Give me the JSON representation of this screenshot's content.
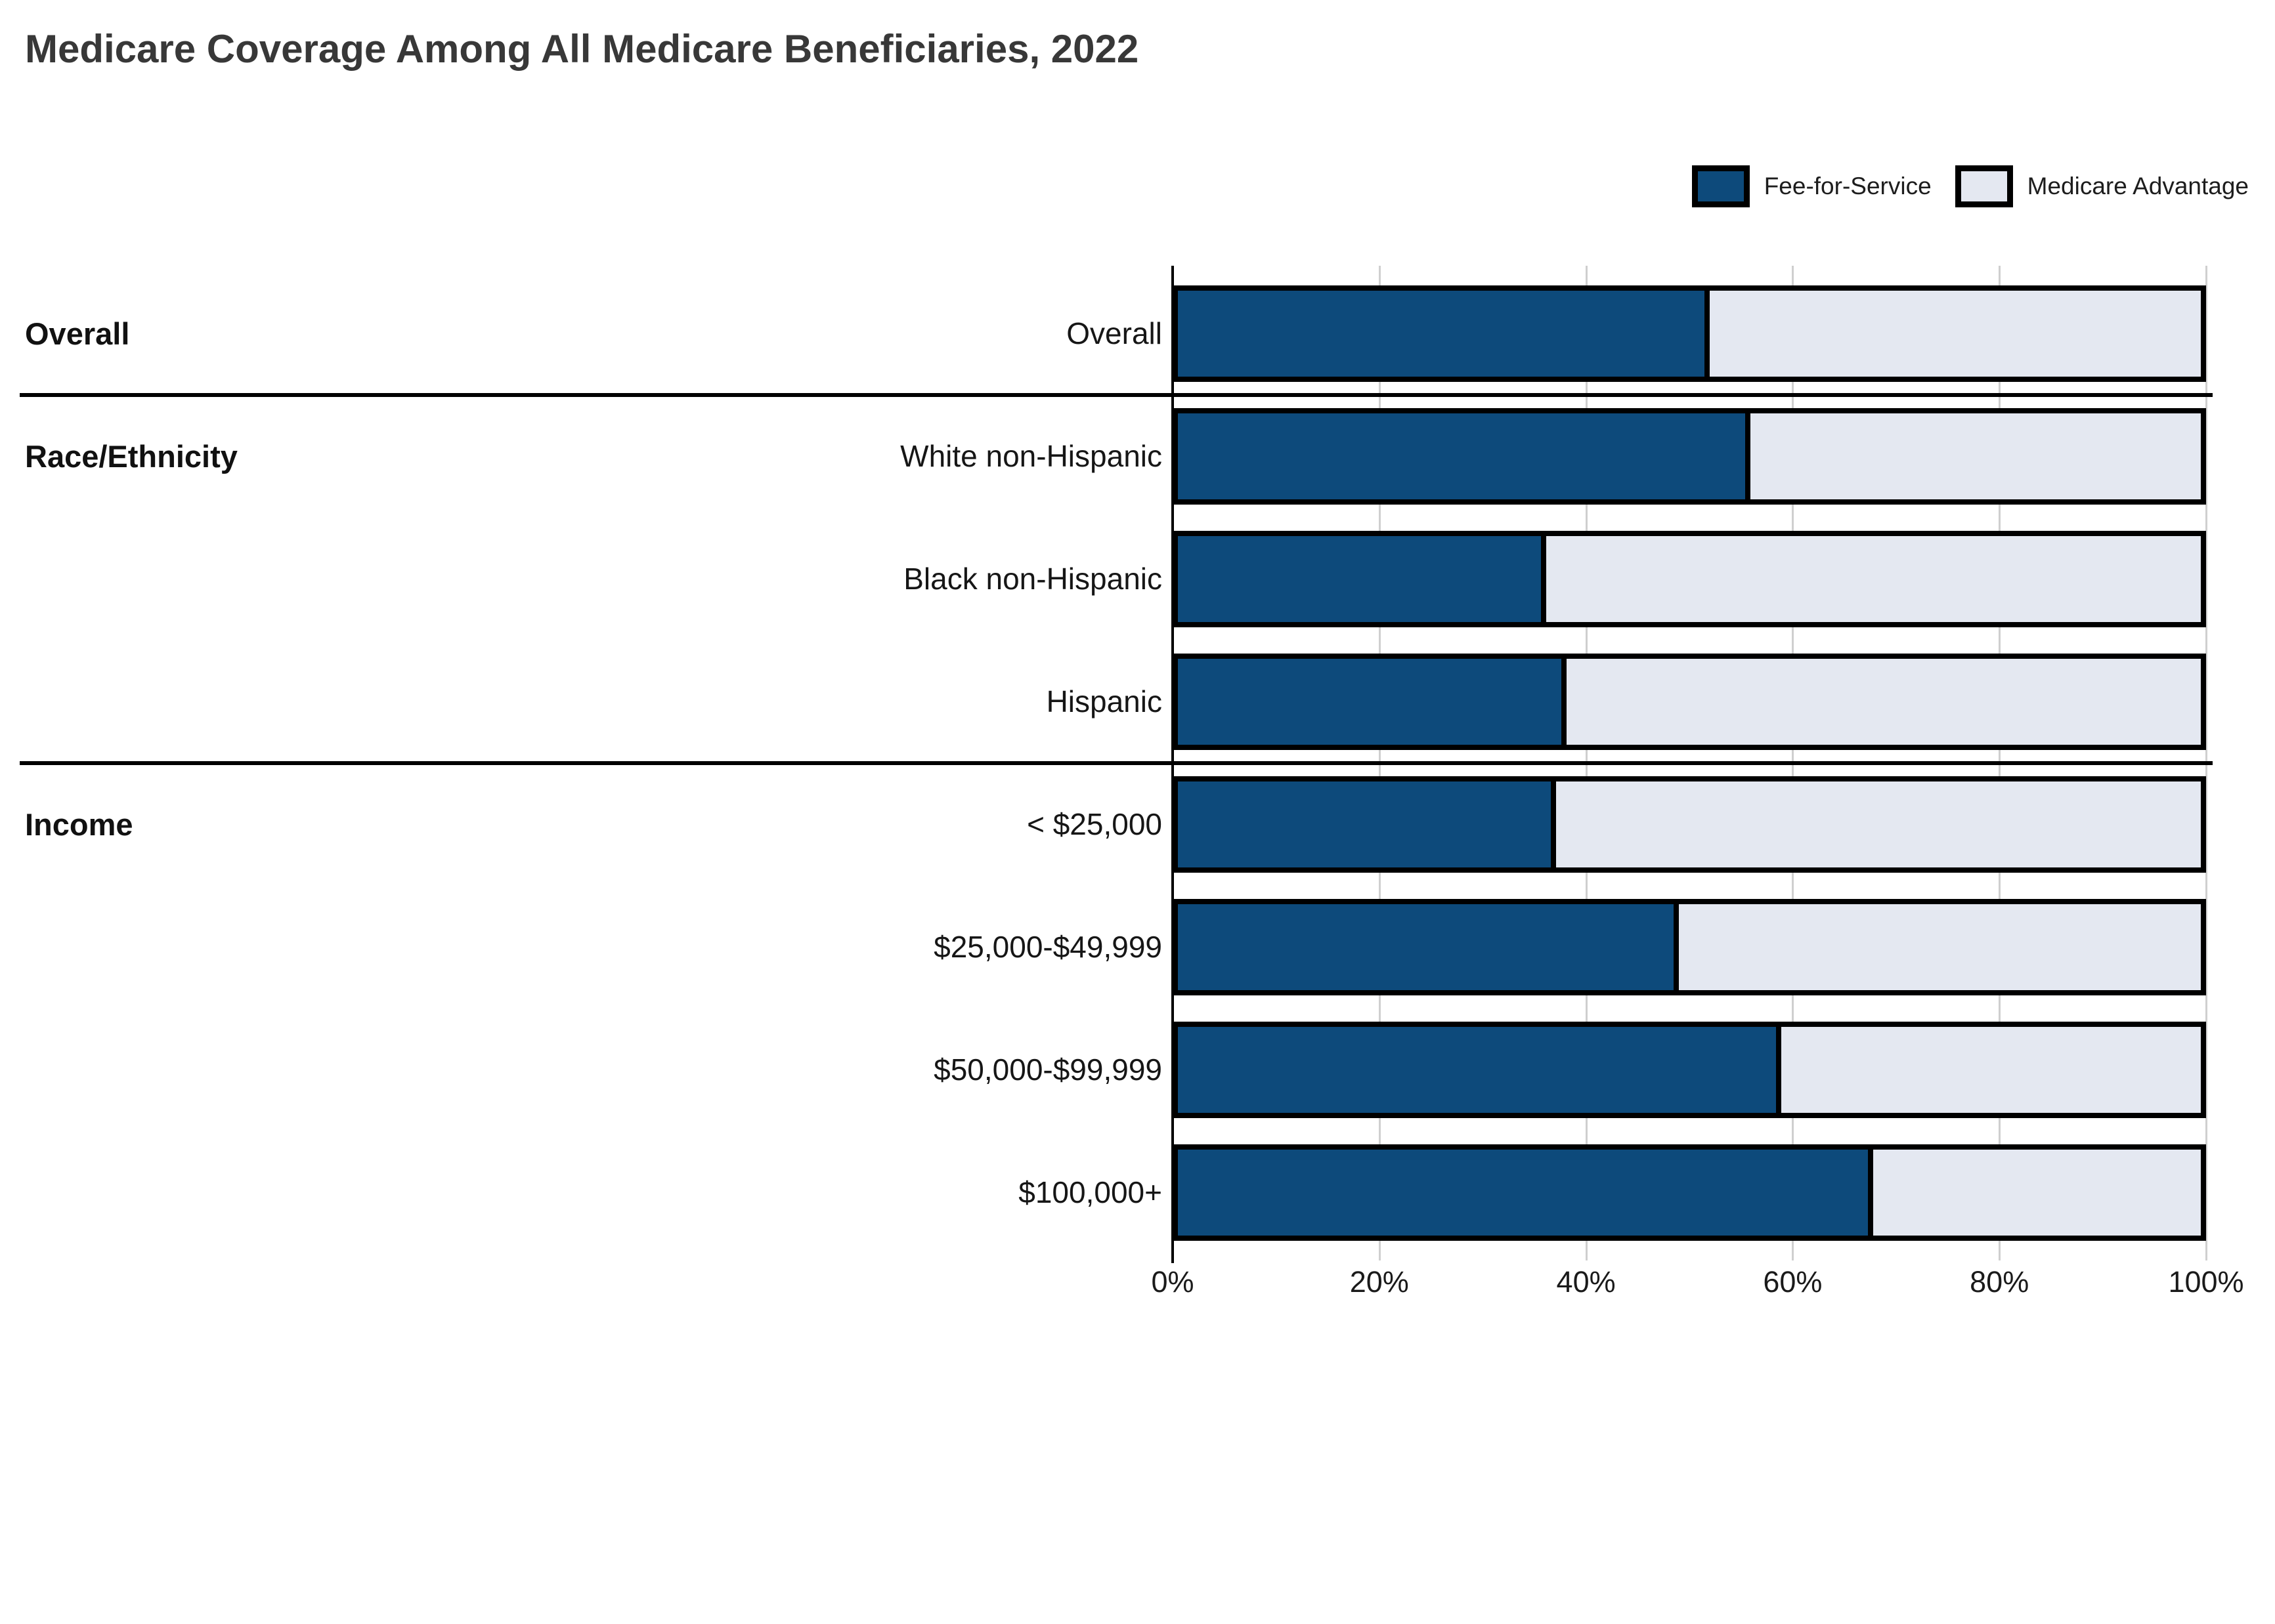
{
  "title": "Medicare Coverage Among All Medicare Beneficiaries, 2022",
  "colors": {
    "fee_for_service": "#0d4a7b",
    "medicare_advantage": "#e4e8f1",
    "bar_border": "#000000",
    "gridline": "#cfcfcf",
    "title_text": "#383838"
  },
  "chart_data": {
    "type": "bar",
    "orientation": "horizontal",
    "stacked": true,
    "title": "Medicare Coverage Among All Medicare Beneficiaries, 2022",
    "categories": [
      "Overall",
      "White non-Hispanic",
      "Black non-Hispanic",
      "Hispanic",
      "< $25,000",
      "$25,000-$49,999",
      "$50,000-$99,999",
      "$100,000+"
    ],
    "groups": [
      {
        "label": "Overall",
        "first_row": 0,
        "row_count": 1
      },
      {
        "label": "Race/Ethnicity",
        "first_row": 1,
        "row_count": 3
      },
      {
        "label": "Income",
        "first_row": 4,
        "row_count": 4
      }
    ],
    "series": [
      {
        "name": "Fee-for-Service",
        "color": "#0d4a7b",
        "values": [
          52,
          56,
          36,
          38,
          37,
          49,
          59,
          68
        ]
      },
      {
        "name": "Medicare Advantage",
        "color": "#e4e8f1",
        "values": [
          48,
          44,
          64,
          62,
          63,
          51,
          41,
          32
        ]
      }
    ],
    "x_axis": {
      "min": 0,
      "max": 100,
      "tick_labels": [
        "0%",
        "20%",
        "40%",
        "60%",
        "80%",
        "100%"
      ],
      "tick_values": [
        0,
        20,
        40,
        60,
        80,
        100
      ],
      "unit": "percent",
      "gridlines": true
    },
    "legend_position": "top-right"
  }
}
